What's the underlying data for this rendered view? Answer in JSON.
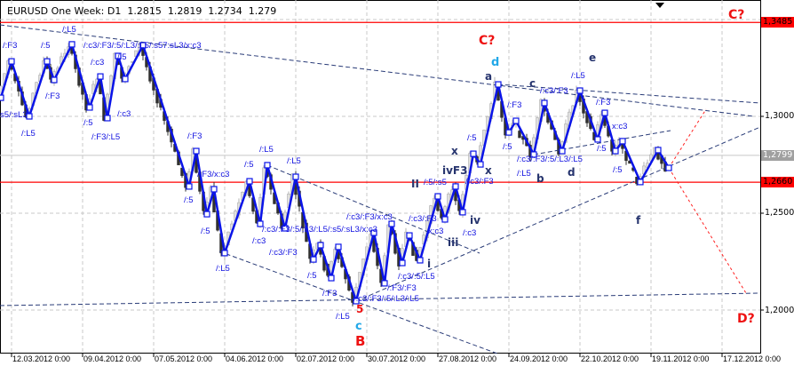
{
  "header": {
    "symbol": "EURUSD",
    "title": "EURUSD One Week: D1  1.2815  1.2819  1.2734  1.279"
  },
  "price_axis": {
    "ticks": [
      "1,3000",
      "1,2500",
      "1,2000"
    ],
    "markers": [
      {
        "label": "1,3485",
        "price": 1.3485,
        "color": "#ff0000"
      },
      {
        "label": "1,2799",
        "price": 1.2799,
        "color": "#a0a0a0"
      },
      {
        "label": "1,2660",
        "price": 1.266,
        "color": "#ff0000"
      }
    ]
  },
  "time_axis": {
    "ticks": [
      "12.03.2012 0:00",
      "09.04.2012 0:00",
      "07.05.2012 0:00",
      "04.06.2012 0:00",
      "02.07.2012 0:00",
      "30.07.2012 0:00",
      "27.08.2012 0:00",
      "24.09.2012 0:00",
      "22.10.2012 0:00",
      "19.11.2012 0:00",
      "17.12.2012 0:00"
    ]
  },
  "chart_data": {
    "type": "line",
    "title": "EURUSD One Week: D1",
    "ohlc_last": {
      "open": 1.2815,
      "high": 1.2819,
      "low": 1.2734,
      "close": 1.279
    },
    "ylim": [
      1.175,
      1.365
    ],
    "grid": true,
    "colors": {
      "zigzag": "#0a14e8",
      "trendline": "#2a3c78",
      "level": "#ff0000",
      "projection": "#ff2020"
    },
    "horizontal_levels": [
      1.3485,
      1.266
    ],
    "current_price": 1.2799,
    "zigzag": [
      {
        "date": "07.03.2012",
        "price": 1.3096
      },
      {
        "date": "12.03.2012",
        "price": 1.3284
      },
      {
        "date": "19.03.2012",
        "price": 1.3
      },
      {
        "date": "26.03.2012",
        "price": 1.3284
      },
      {
        "date": "28.03.2012",
        "price": 1.3188
      },
      {
        "date": "04.04.2012",
        "price": 1.3372
      },
      {
        "date": "11.04.2012",
        "price": 1.3046
      },
      {
        "date": "16.04.2012",
        "price": 1.3206
      },
      {
        "date": "18.04.2012",
        "price": 1.2991
      },
      {
        "date": "23.04.2012",
        "price": 1.3312
      },
      {
        "date": "25.04.2012",
        "price": 1.3193
      },
      {
        "date": "02.05.2012",
        "price": 1.3367
      },
      {
        "date": "21.05.2012",
        "price": 1.2638
      },
      {
        "date": "23.05.2012",
        "price": 1.2821
      },
      {
        "date": "28.05.2012",
        "price": 1.2495
      },
      {
        "date": "30.05.2012",
        "price": 1.2624
      },
      {
        "date": "04.06.2012",
        "price": 1.2294
      },
      {
        "date": "13.06.2012",
        "price": 1.2665
      },
      {
        "date": "18.06.2012",
        "price": 1.2445
      },
      {
        "date": "20.06.2012",
        "price": 1.2748
      },
      {
        "date": "27.06.2012",
        "price": 1.2422
      },
      {
        "date": "02.07.2012",
        "price": 1.2688
      },
      {
        "date": "09.07.2012",
        "price": 1.2261
      },
      {
        "date": "11.07.2012",
        "price": 1.2335
      },
      {
        "date": "16.07.2012",
        "price": 1.2165
      },
      {
        "date": "18.07.2012",
        "price": 1.2326
      },
      {
        "date": "25.07.2012",
        "price": 1.2046
      },
      {
        "date": "01.08.2012",
        "price": 1.2399
      },
      {
        "date": "06.08.2012",
        "price": 1.2138
      },
      {
        "date": "08.08.2012",
        "price": 1.2445
      },
      {
        "date": "13.08.2012",
        "price": 1.2243
      },
      {
        "date": "15.08.2012",
        "price": 1.2385
      },
      {
        "date": "20.08.2012",
        "price": 1.2257
      },
      {
        "date": "27.08.2012",
        "price": 1.2587
      },
      {
        "date": "29.08.2012",
        "price": 1.2468
      },
      {
        "date": "03.09.2012",
        "price": 1.2638
      },
      {
        "date": "05.09.2012",
        "price": 1.2505
      },
      {
        "date": "10.09.2012",
        "price": 1.2807
      },
      {
        "date": "12.09.2012",
        "price": 1.2752
      },
      {
        "date": "19.09.2012",
        "price": 1.3165
      },
      {
        "date": "24.09.2012",
        "price": 1.2917
      },
      {
        "date": "26.09.2012",
        "price": 1.2977
      },
      {
        "date": "03.10.2012",
        "price": 1.2803
      },
      {
        "date": "08.10.2012",
        "price": 1.3069
      },
      {
        "date": "15.10.2012",
        "price": 1.2821
      },
      {
        "date": "22.10.2012",
        "price": 1.3133
      },
      {
        "date": "29.10.2012",
        "price": 1.2881
      },
      {
        "date": "31.10.2012",
        "price": 1.3018
      },
      {
        "date": "05.11.2012",
        "price": 1.2821
      },
      {
        "date": "07.11.2012",
        "price": 1.2872
      },
      {
        "date": "14.11.2012",
        "price": 1.2661
      },
      {
        "date": "21.11.2012",
        "price": 1.2826
      },
      {
        "date": "26.11.2012",
        "price": 1.2734
      }
    ],
    "annotations": {
      "small": [
        "/:L5",
        "/:F3",
        "/:5",
        "/:c3/:F3/:5/:L3/:L5/:s57:sL3/x:c3",
        "/:c3",
        "/:5",
        "/:F3",
        "s5/:sL3",
        "/:c3",
        "/:L5",
        "/:5",
        "/:F3/:L5",
        "/:F3",
        "/:F3/x:c3",
        "/:5",
        "/:5",
        "/:L5",
        "/:L5",
        "/:5",
        "/:c3/:F3/:5/:L3/:L5/:s5/:sL3/x:c3",
        "/:c3",
        "/:c3/:F3",
        "/:L5",
        "/:5",
        "/:F3",
        "/:c3/:F3/x:c3",
        "/:c3/:F3",
        "/:c3/:F3/:5/:L3/:L5",
        "/:L5",
        "/:F3/:F3",
        "/:c3/:5/:L5",
        "x:c3",
        "/:5/:s5",
        "/:c3/:F3",
        "/:c3",
        "/:5",
        "/:F3",
        "/:5",
        "/:c3/:F3",
        "/:L5",
        "/:F3",
        "x:c3",
        "/:5",
        "/:5",
        "/:c3/:F3/:5/:L3/:L5",
        "/:L5"
      ],
      "waves": [
        "II",
        "ivF3",
        "iii",
        "i",
        "iv",
        "x",
        "x",
        "a",
        "c",
        "b",
        "d",
        "e",
        "f"
      ],
      "red": [
        "C?",
        "C?",
        "D?",
        "5",
        "B"
      ],
      "cyan": [
        "d",
        "c"
      ]
    }
  }
}
